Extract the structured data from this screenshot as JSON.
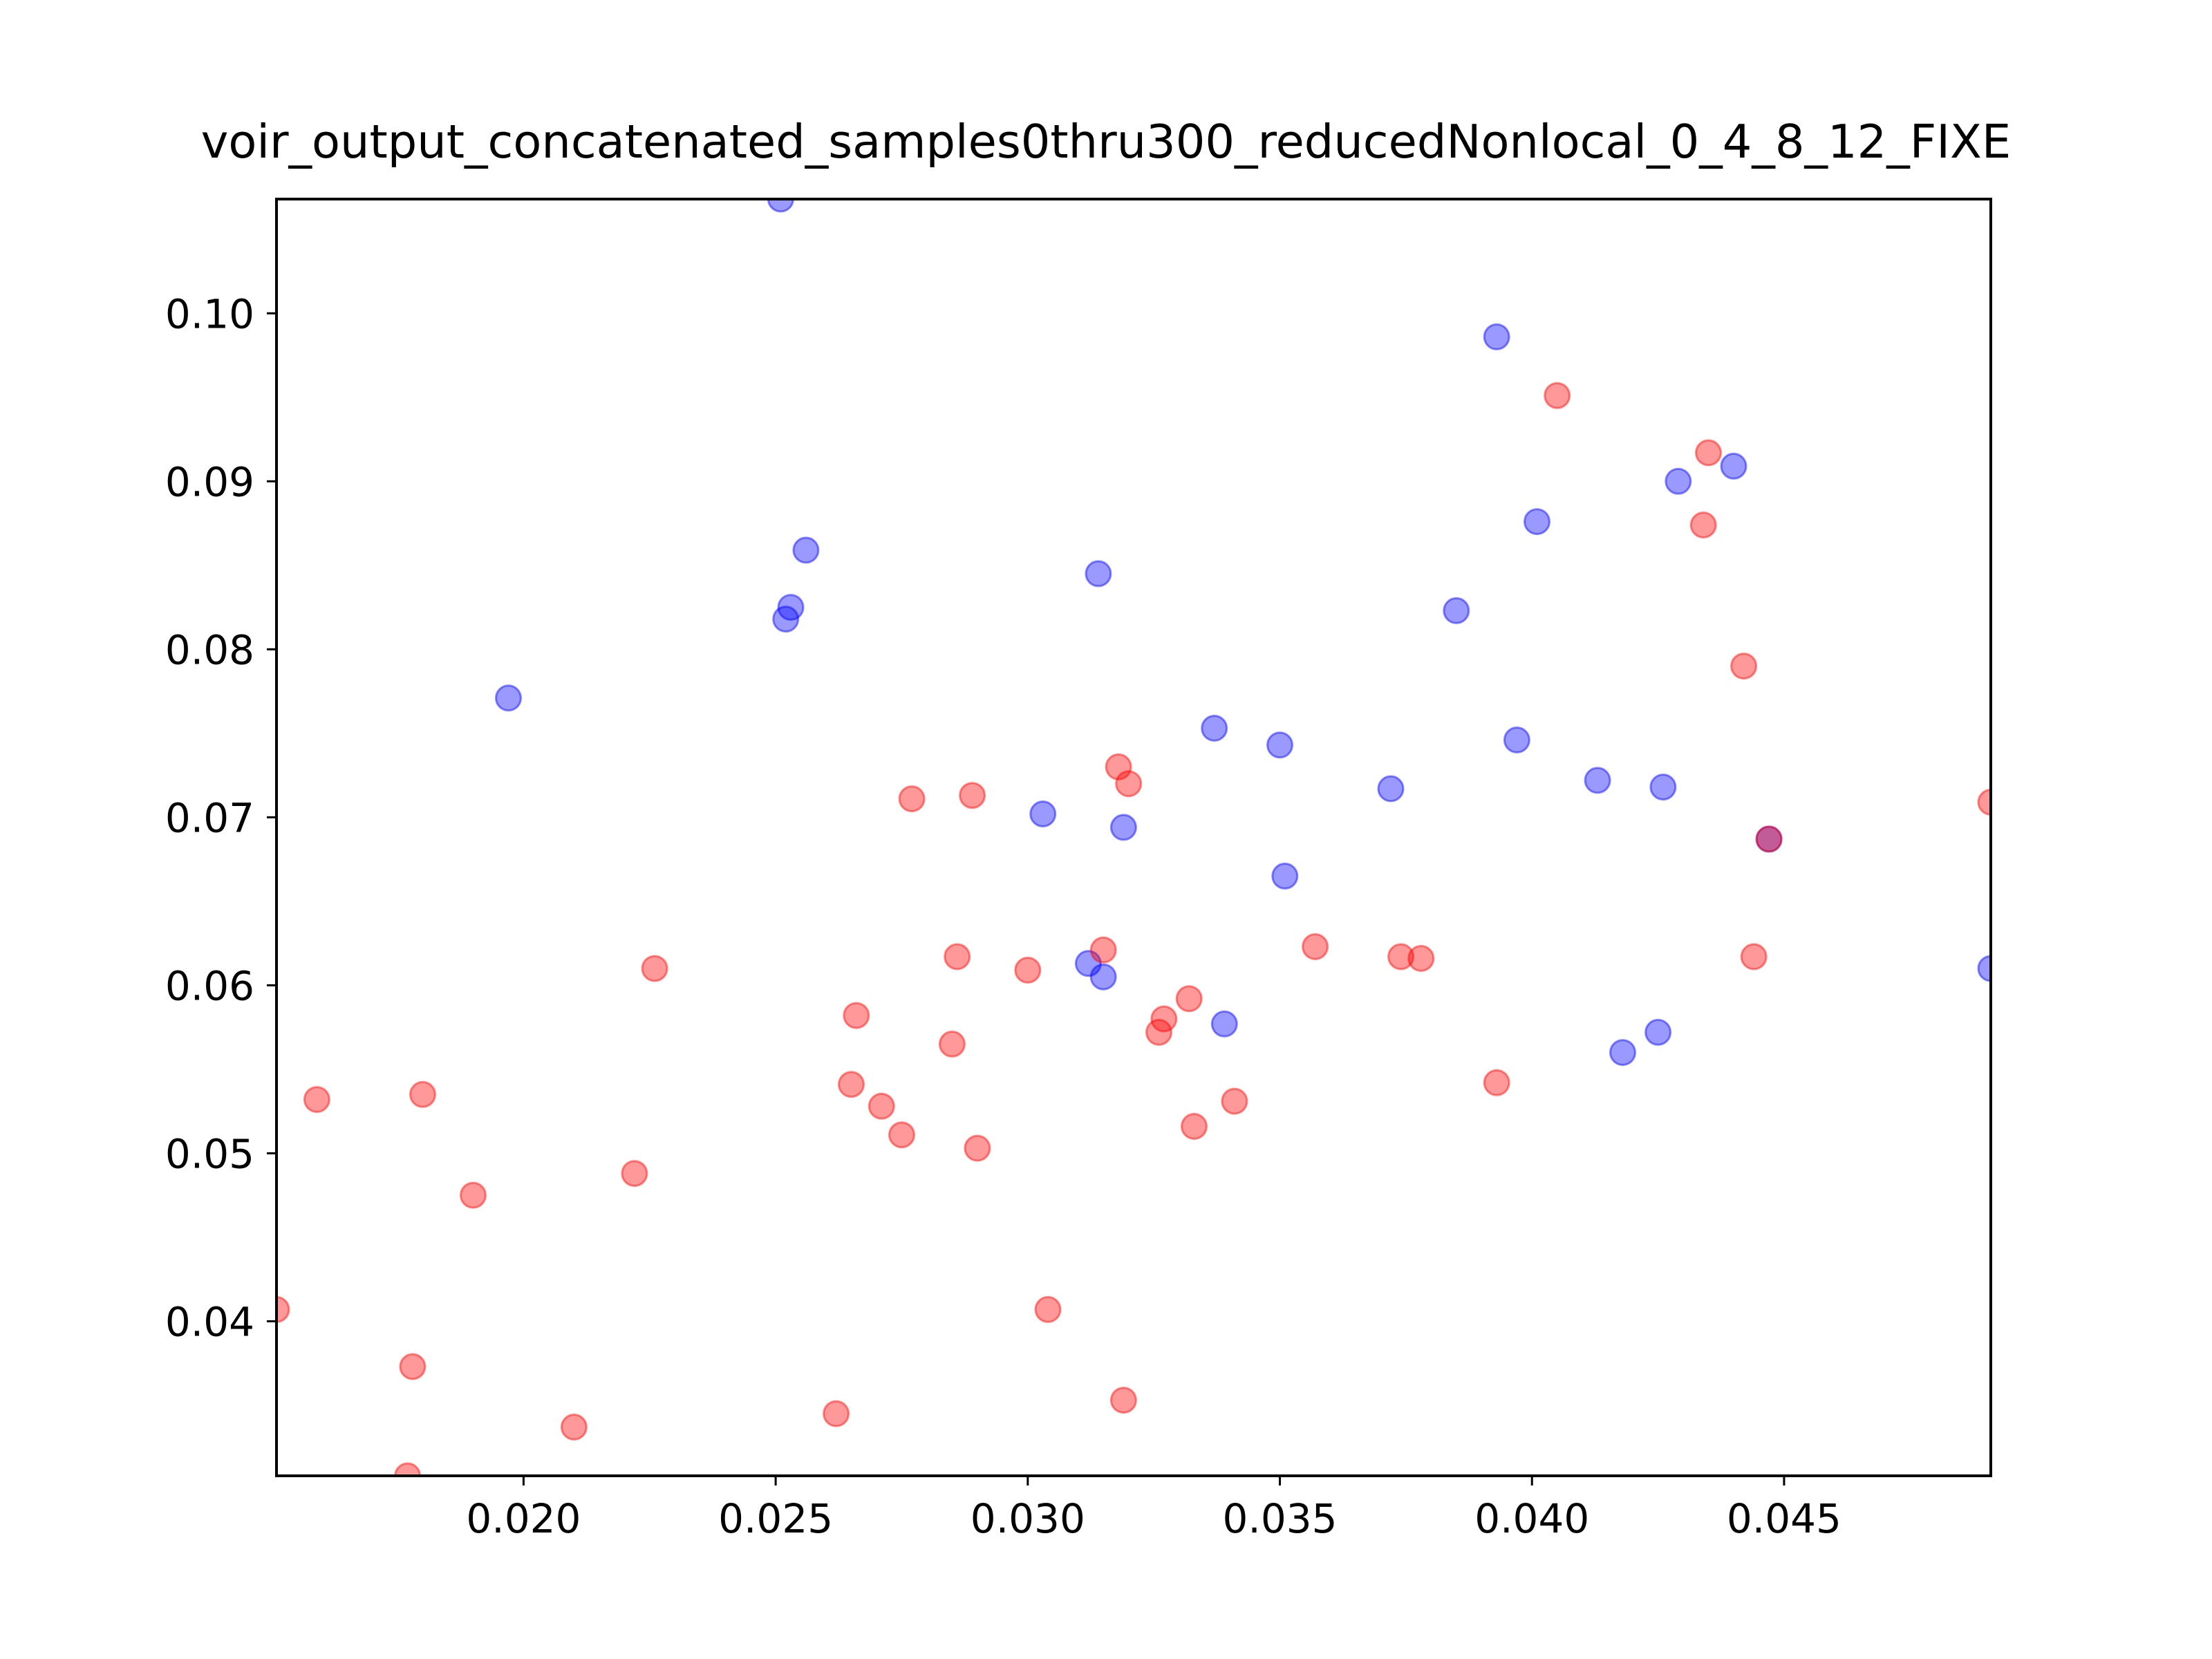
{
  "chart_data": {
    "type": "scatter",
    "title": "voir_output_concatenated_samples0thru300_reducedNonlocal_0_4_8_12_FIXE",
    "xlabel": "",
    "ylabel": "",
    "xlim": [
      0.0151,
      0.0491
    ],
    "ylim": [
      0.0308,
      0.1068
    ],
    "x_ticks": [
      "0.020",
      "0.025",
      "0.030",
      "0.035",
      "0.040",
      "0.045"
    ],
    "x_tick_values": [
      0.02,
      0.025,
      0.03,
      0.035,
      0.04,
      0.045
    ],
    "y_ticks": [
      "0.04",
      "0.05",
      "0.06",
      "0.07",
      "0.08",
      "0.09",
      "0.10"
    ],
    "y_tick_values": [
      0.04,
      0.05,
      0.06,
      0.07,
      0.08,
      0.09,
      0.1
    ],
    "grid": false,
    "legend": false,
    "series": [
      {
        "color": "#0000ff",
        "opacity": 0.4,
        "points": [
          [
            0.0251,
            0.1068
          ],
          [
            0.0197,
            0.0771
          ],
          [
            0.0252,
            0.0818
          ],
          [
            0.0253,
            0.0825
          ],
          [
            0.0256,
            0.0859
          ],
          [
            0.0303,
            0.0702
          ],
          [
            0.0314,
            0.0845
          ],
          [
            0.0319,
            0.0694
          ],
          [
            0.0312,
            0.0613
          ],
          [
            0.0315,
            0.0605
          ],
          [
            0.0337,
            0.0753
          ],
          [
            0.0339,
            0.0577
          ],
          [
            0.035,
            0.0743
          ],
          [
            0.0351,
            0.0665
          ],
          [
            0.0372,
            0.0717
          ],
          [
            0.0385,
            0.0823
          ],
          [
            0.0393,
            0.0986
          ],
          [
            0.0397,
            0.0746
          ],
          [
            0.0401,
            0.0876
          ],
          [
            0.0413,
            0.0722
          ],
          [
            0.0418,
            0.056
          ],
          [
            0.0425,
            0.0572
          ],
          [
            0.0426,
            0.0718
          ],
          [
            0.0429,
            0.09
          ],
          [
            0.044,
            0.0909
          ],
          [
            0.0447,
            0.0687
          ],
          [
            0.0491,
            0.061
          ]
        ]
      },
      {
        "color": "#ff0000",
        "opacity": 0.4,
        "points": [
          [
            0.0151,
            0.0407
          ],
          [
            0.0159,
            0.0532
          ],
          [
            0.0177,
            0.0308
          ],
          [
            0.0178,
            0.0373
          ],
          [
            0.018,
            0.0535
          ],
          [
            0.019,
            0.0475
          ],
          [
            0.021,
            0.0337
          ],
          [
            0.0222,
            0.0488
          ],
          [
            0.0226,
            0.061
          ],
          [
            0.0262,
            0.0345
          ],
          [
            0.0265,
            0.0541
          ],
          [
            0.0266,
            0.0582
          ],
          [
            0.0271,
            0.0528
          ],
          [
            0.0275,
            0.0511
          ],
          [
            0.0277,
            0.0711
          ],
          [
            0.0285,
            0.0565
          ],
          [
            0.0286,
            0.0617
          ],
          [
            0.0289,
            0.0713
          ],
          [
            0.029,
            0.0503
          ],
          [
            0.03,
            0.0609
          ],
          [
            0.0304,
            0.0407
          ],
          [
            0.0315,
            0.0621
          ],
          [
            0.0318,
            0.073
          ],
          [
            0.0319,
            0.0353
          ],
          [
            0.032,
            0.072
          ],
          [
            0.0326,
            0.0572
          ],
          [
            0.0327,
            0.058
          ],
          [
            0.0332,
            0.0592
          ],
          [
            0.0333,
            0.0516
          ],
          [
            0.0341,
            0.0531
          ],
          [
            0.0357,
            0.0623
          ],
          [
            0.0374,
            0.0617
          ],
          [
            0.0378,
            0.0616
          ],
          [
            0.0393,
            0.0542
          ],
          [
            0.0405,
            0.0951
          ],
          [
            0.0434,
            0.0874
          ],
          [
            0.0435,
            0.0917
          ],
          [
            0.0442,
            0.079
          ],
          [
            0.0444,
            0.0617
          ],
          [
            0.0447,
            0.0687
          ],
          [
            0.0491,
            0.0709
          ]
        ]
      }
    ]
  }
}
